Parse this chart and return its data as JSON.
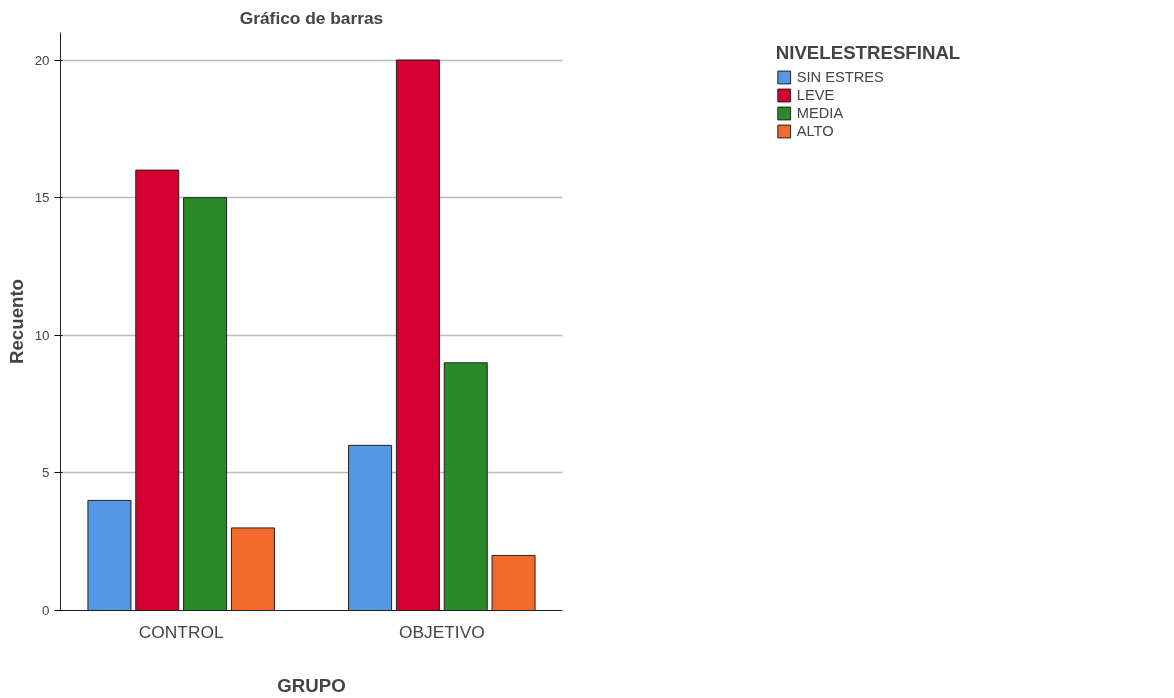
{
  "chart_data": {
    "type": "bar",
    "title": "Gráfico de barras",
    "xlabel": "GRUPO",
    "ylabel": "Recuento",
    "legend_title": "NIVELESTRESFINAL",
    "categories": [
      "CONTROL",
      "OBJETIVO"
    ],
    "series": [
      {
        "name": "SIN ESTRES",
        "color": "#5596e6",
        "values": [
          4,
          6
        ]
      },
      {
        "name": "LEVE",
        "color": "#d40032",
        "values": [
          16,
          20
        ]
      },
      {
        "name": "MEDIA",
        "color": "#2a8a2a",
        "values": [
          15,
          9
        ]
      },
      {
        "name": "ALTO",
        "color": "#f26b2a",
        "values": [
          3,
          2
        ]
      }
    ],
    "ylim": [
      0,
      21
    ],
    "yticks": [
      0,
      5,
      10,
      15,
      20
    ],
    "grid": "y",
    "legend": "top right"
  }
}
